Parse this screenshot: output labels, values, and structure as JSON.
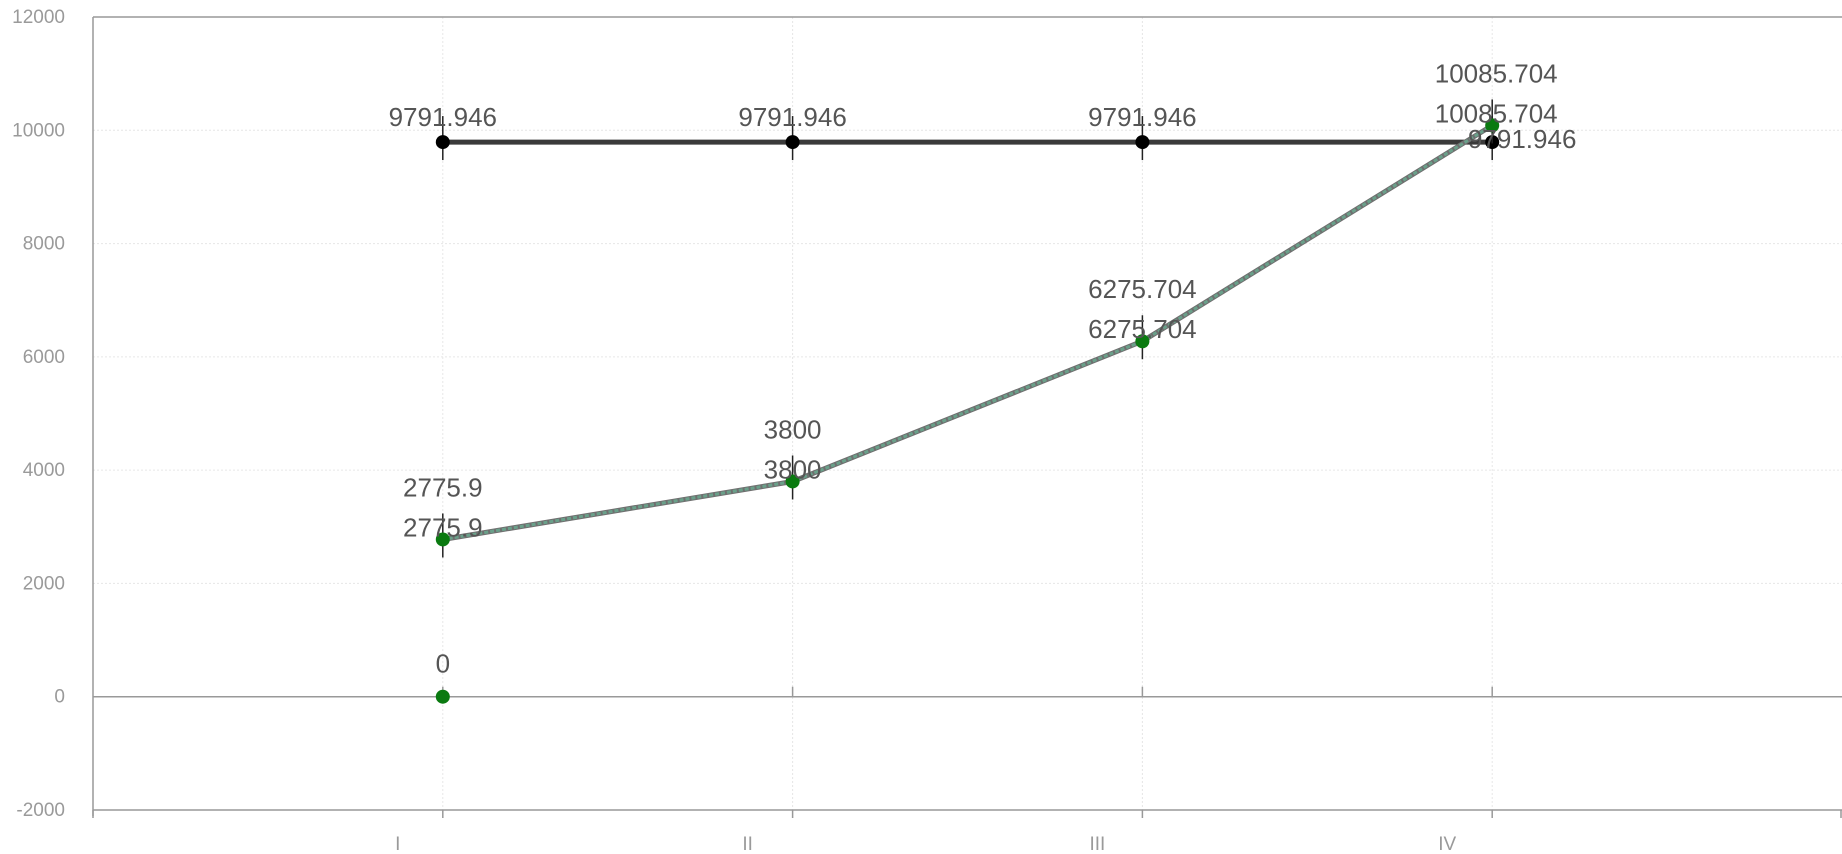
{
  "chart_data": {
    "type": "line",
    "categories": [
      "I",
      "II",
      "III",
      "IV"
    ],
    "ylim": [
      -2000,
      12000
    ],
    "yticks": [
      -2000,
      0,
      2000,
      4000,
      6000,
      8000,
      10000,
      12000
    ],
    "grid": true,
    "legend": "none",
    "series": [
      {
        "color": "#000000",
        "line_color": "#3a3a3a",
        "values": [
          9791.946,
          9791.946,
          9791.946,
          9791.946
        ],
        "labels": [
          "9791.946",
          "9791.946",
          "9791.946",
          "9791.946"
        ]
      },
      {
        "color": "#0a7a10",
        "line_color": "#6aa08a",
        "values": [
          2775.9,
          3800,
          6275.704,
          10085.704
        ],
        "labels": [
          "2775.9",
          "3800",
          "6275.704",
          "10085.704"
        ],
        "labels_upper": [
          "2775.9",
          "3800",
          "6275.704",
          "10085.704"
        ]
      }
    ],
    "extra_points": [
      {
        "category": "I",
        "value": 0,
        "label": "0",
        "color": "#0a7a10"
      }
    ]
  }
}
